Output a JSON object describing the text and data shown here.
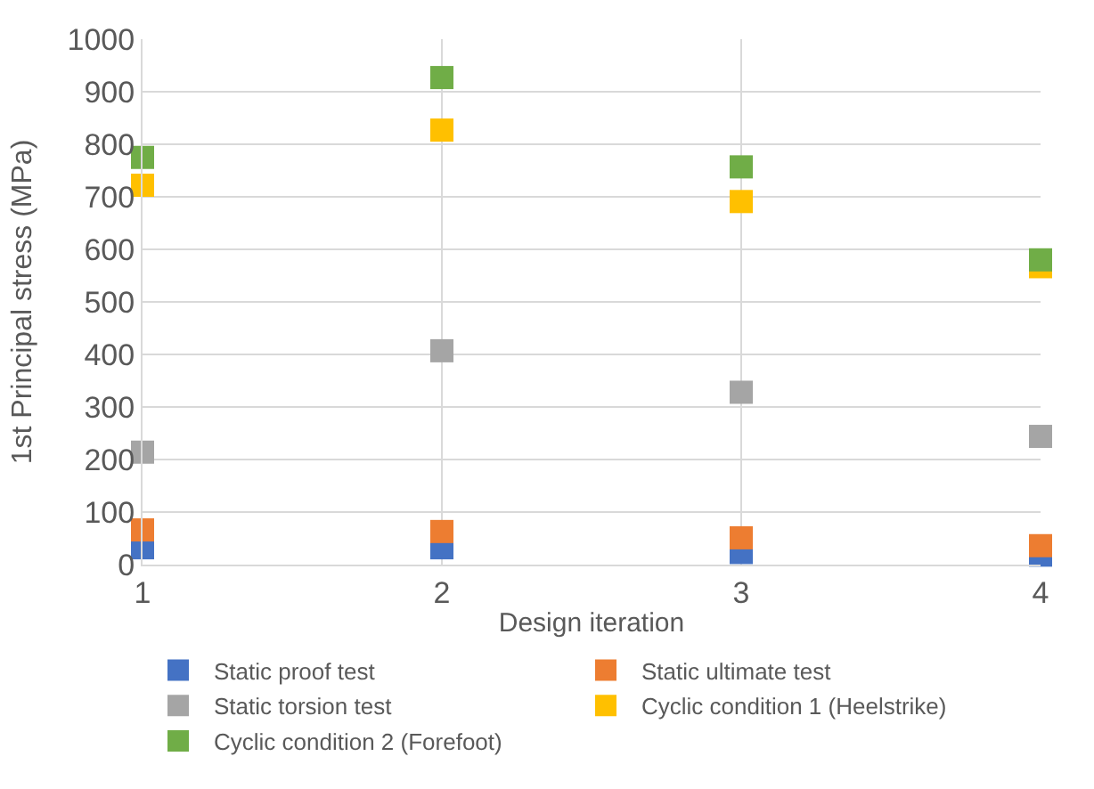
{
  "chart_data": {
    "type": "scatter",
    "xlabel": "Design iteration",
    "ylabel": "1st Principal stress (MPa)",
    "x": [
      1,
      2,
      3,
      4
    ],
    "series": [
      {
        "name": "Static proof test",
        "color": "#4472c4",
        "values": [
          32,
          32,
          23,
          18
        ]
      },
      {
        "name": "Static ultimate test",
        "color": "#ed7d31",
        "values": [
          66,
          63,
          51,
          36
        ]
      },
      {
        "name": "Static torsion test",
        "color": "#a5a5a5",
        "values": [
          214,
          407,
          328,
          244
        ]
      },
      {
        "name": "Cyclic condition 1 (Heelstrike)",
        "color": "#ffc000",
        "values": [
          722,
          827,
          691,
          567
        ]
      },
      {
        "name": "Cyclic condition 2 (Forefoot)",
        "color": "#70ad47",
        "values": [
          775,
          927,
          757,
          580
        ]
      }
    ],
    "xlim": [
      1,
      4
    ],
    "xticks": [
      1,
      2,
      3,
      4
    ],
    "ylim": [
      0,
      1000
    ],
    "yticks": [
      0,
      100,
      200,
      300,
      400,
      500,
      600,
      700,
      800,
      900,
      1000
    ],
    "grid": true,
    "legend": "bottom",
    "marker": "square"
  }
}
